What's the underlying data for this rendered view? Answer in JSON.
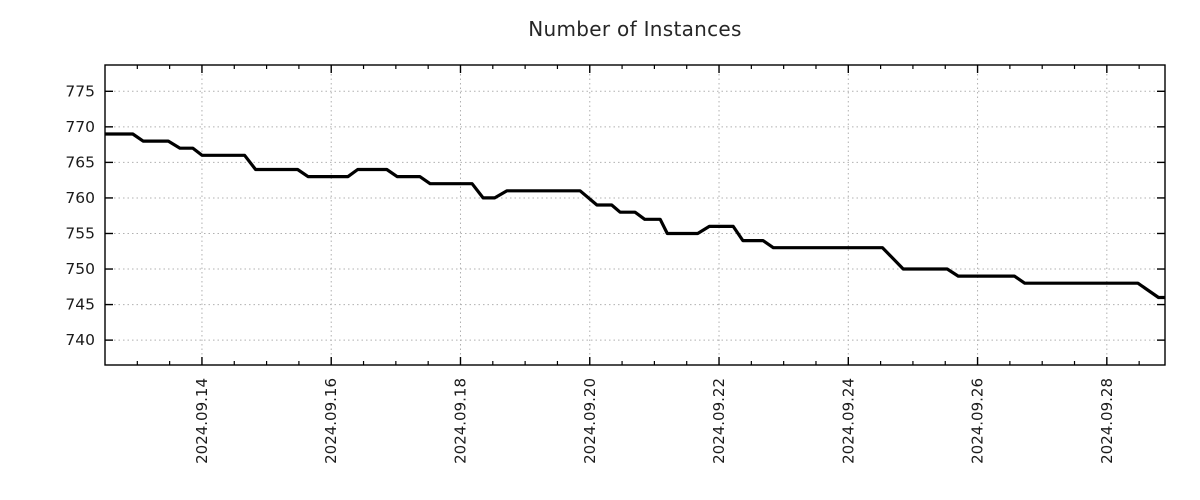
{
  "title": "Number of Instances",
  "chart_data": {
    "type": "line",
    "title": "Number of Instances",
    "xlabel": "",
    "ylabel": "",
    "x_unit": "days_from_left_edge",
    "xlim": [
      0,
      16.4
    ],
    "ylim": [
      736.5,
      778.7
    ],
    "grid": "dotted",
    "legend": "none",
    "y_ticks": [
      740,
      745,
      750,
      755,
      760,
      765,
      770,
      775
    ],
    "x_major_ticks": [
      1.5,
      3.5,
      5.5,
      7.5,
      9.5,
      11.5,
      13.5,
      15.5
    ],
    "x_tick_labels": [
      "2024.09.14",
      "2024.09.16",
      "2024.09.18",
      "2024.09.20",
      "2024.09.22",
      "2024.09.24",
      "2024.09.26",
      "2024.09.28"
    ],
    "x_minor_tick_step": 0.5,
    "line_color": "#000000",
    "line_width": 3.2,
    "grid_color": "#b0b0b0",
    "axis_color": "#000000",
    "text_color": "#1a1a1a",
    "series": [
      {
        "name": "instances",
        "points": [
          [
            0.0,
            769
          ],
          [
            0.43,
            769
          ],
          [
            0.59,
            768
          ],
          [
            0.98,
            768
          ],
          [
            1.16,
            767
          ],
          [
            1.36,
            767
          ],
          [
            1.5,
            766
          ],
          [
            2.16,
            766
          ],
          [
            2.33,
            764
          ],
          [
            2.98,
            764
          ],
          [
            3.14,
            763
          ],
          [
            3.76,
            763
          ],
          [
            3.91,
            764
          ],
          [
            4.36,
            764
          ],
          [
            4.52,
            763
          ],
          [
            4.87,
            763
          ],
          [
            5.03,
            762
          ],
          [
            5.68,
            762
          ],
          [
            5.85,
            760
          ],
          [
            6.03,
            760
          ],
          [
            6.22,
            761
          ],
          [
            7.35,
            761
          ],
          [
            7.61,
            759
          ],
          [
            7.84,
            759
          ],
          [
            7.97,
            758
          ],
          [
            8.2,
            758
          ],
          [
            8.35,
            757
          ],
          [
            8.59,
            757
          ],
          [
            8.7,
            755
          ],
          [
            9.17,
            755
          ],
          [
            9.35,
            756
          ],
          [
            9.72,
            756
          ],
          [
            9.87,
            754
          ],
          [
            10.18,
            754
          ],
          [
            10.34,
            753
          ],
          [
            12.03,
            753
          ],
          [
            12.35,
            750
          ],
          [
            13.03,
            750
          ],
          [
            13.2,
            749
          ],
          [
            14.07,
            749
          ],
          [
            14.23,
            748
          ],
          [
            15.98,
            748
          ],
          [
            16.3,
            746
          ],
          [
            16.4,
            746
          ]
        ]
      }
    ]
  }
}
